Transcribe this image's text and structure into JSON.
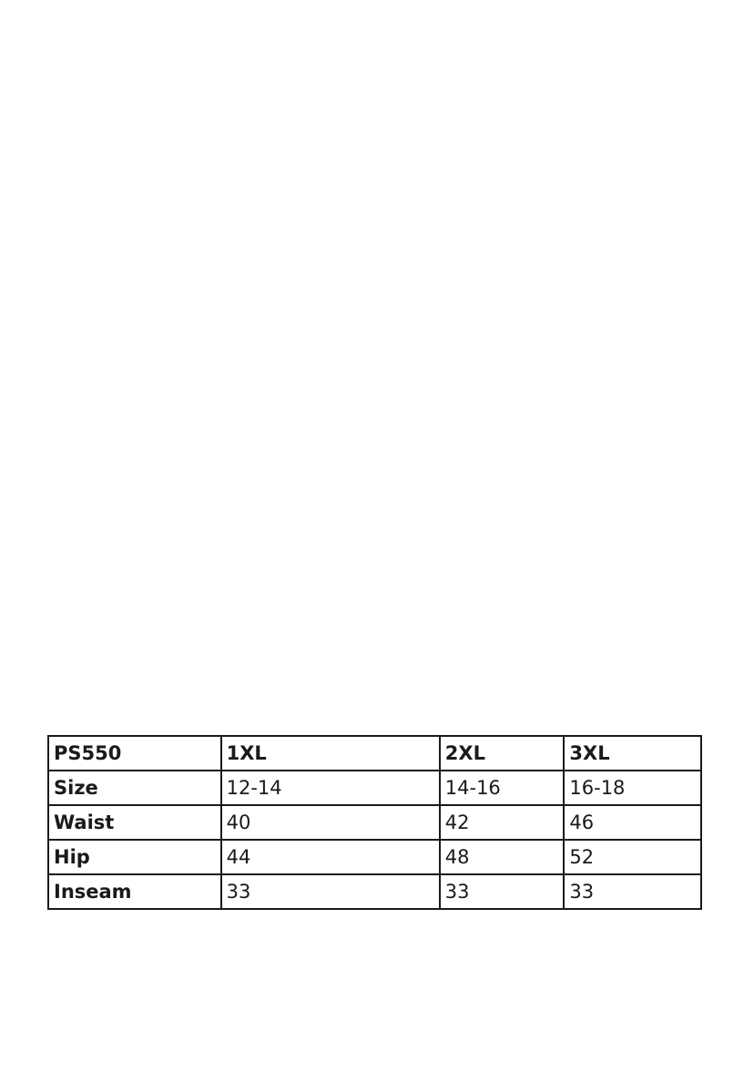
{
  "table": {
    "headers": [
      "PS550",
      "1XL",
      "2XL",
      "3XL"
    ],
    "rows": [
      {
        "label": "Size",
        "values": [
          "12-14",
          "14-16",
          "16-18"
        ]
      },
      {
        "label": "Waist",
        "values": [
          "40",
          "42",
          "46"
        ]
      },
      {
        "label": "Hip",
        "values": [
          "44",
          "48",
          "52"
        ]
      },
      {
        "label": "Inseam",
        "values": [
          "33",
          "33",
          "33"
        ]
      }
    ]
  }
}
